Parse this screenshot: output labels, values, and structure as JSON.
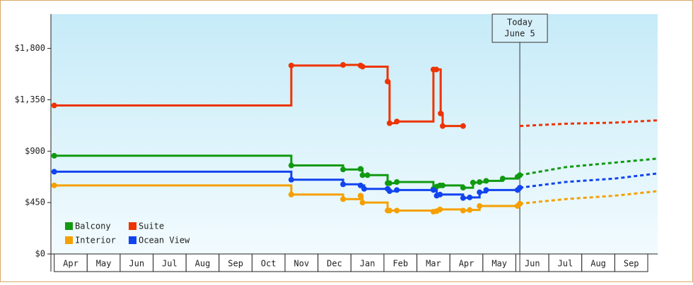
{
  "chart_data": {
    "type": "step-line",
    "xlim": [
      -0.1,
      18.3
    ],
    "xticks": [
      {
        "value": 0.5,
        "label": "Apr"
      },
      {
        "value": 1.5,
        "label": "May"
      },
      {
        "value": 2.5,
        "label": "Jun"
      },
      {
        "value": 3.5,
        "label": "Jul"
      },
      {
        "value": 4.5,
        "label": "Aug"
      },
      {
        "value": 5.5,
        "label": "Sep"
      },
      {
        "value": 6.5,
        "label": "Oct"
      },
      {
        "value": 7.5,
        "label": "Nov"
      },
      {
        "value": 8.5,
        "label": "Dec"
      },
      {
        "value": 9.5,
        "label": "Jan"
      },
      {
        "value": 10.5,
        "label": "Feb"
      },
      {
        "value": 11.5,
        "label": "Mar"
      },
      {
        "value": 12.5,
        "label": "Apr"
      },
      {
        "value": 13.5,
        "label": "May"
      },
      {
        "value": 14.5,
        "label": "Jun"
      },
      {
        "value": 15.5,
        "label": "Jul"
      },
      {
        "value": 16.5,
        "label": "Aug"
      },
      {
        "value": 17.5,
        "label": "Sep"
      }
    ],
    "ylim": [
      0,
      2100
    ],
    "yticks": [
      {
        "value": 0,
        "label": "$0"
      },
      {
        "value": 450,
        "label": "$450"
      },
      {
        "value": 900,
        "label": "$900"
      },
      {
        "value": 1350,
        "label": "$1,350"
      },
      {
        "value": 1800,
        "label": "$1,800"
      }
    ],
    "annotation": {
      "x": 14.12,
      "lines": [
        "Today",
        "June 5"
      ]
    },
    "legend": "lower-left",
    "series": [
      {
        "name": "Balcony",
        "color": "#119911",
        "x": [
          0,
          7.19,
          8.76,
          9.29,
          9.35,
          9.5,
          10.11,
          10.17,
          10.39,
          11.5,
          11.6,
          11.7,
          11.78,
          12.4,
          12.7,
          12.9,
          13.1,
          13.6,
          14.05,
          14.12
        ],
        "values": [
          860,
          775,
          740,
          745,
          690,
          690,
          620,
          620,
          630,
          570,
          590,
          600,
          600,
          580,
          625,
          630,
          640,
          660,
          675,
          690
        ],
        "forecast": {
          "x": [
            14.12,
            15.5,
            17,
            18.3
          ],
          "values": [
            690,
            760,
            800,
            835
          ]
        }
      },
      {
        "name": "Suite",
        "color": "#ee3300",
        "x": [
          0,
          7.19,
          8.76,
          9.29,
          9.35,
          10.11,
          10.17,
          10.39,
          11.5,
          11.59,
          11.72,
          11.78,
          12.4
        ],
        "values": [
          1300,
          1650,
          1655,
          1650,
          1640,
          1510,
          1145,
          1160,
          1615,
          1615,
          1230,
          1120,
          1120
        ],
        "forecast": {
          "x": [
            14.12,
            15.5,
            17,
            18.3
          ],
          "values": [
            1120,
            1140,
            1150,
            1170
          ]
        }
      },
      {
        "name": "Interior",
        "color": "#f5a000",
        "x": [
          0,
          7.19,
          8.76,
          9.29,
          9.35,
          10.11,
          10.17,
          10.39,
          11.5,
          11.6,
          11.7,
          12.4,
          12.6,
          12.9,
          14.05,
          14.12
        ],
        "values": [
          600,
          520,
          480,
          510,
          450,
          380,
          380,
          380,
          370,
          375,
          390,
          380,
          385,
          420,
          420,
          440
        ],
        "forecast": {
          "x": [
            14.12,
            15.5,
            17,
            18.3
          ],
          "values": [
            440,
            480,
            510,
            550
          ]
        }
      },
      {
        "name": "Ocean View",
        "color": "#1144ee",
        "x": [
          0,
          7.19,
          8.76,
          9.29,
          9.4,
          10.11,
          10.17,
          10.39,
          11.5,
          11.6,
          11.7,
          12.4,
          12.6,
          12.9,
          13.1,
          14.05,
          14.12
        ],
        "values": [
          720,
          650,
          610,
          600,
          570,
          570,
          550,
          560,
          560,
          510,
          520,
          490,
          495,
          540,
          560,
          560,
          580
        ],
        "forecast": {
          "x": [
            14.12,
            15.5,
            17,
            18.3
          ],
          "values": [
            580,
            630,
            660,
            705
          ]
        }
      }
    ]
  }
}
